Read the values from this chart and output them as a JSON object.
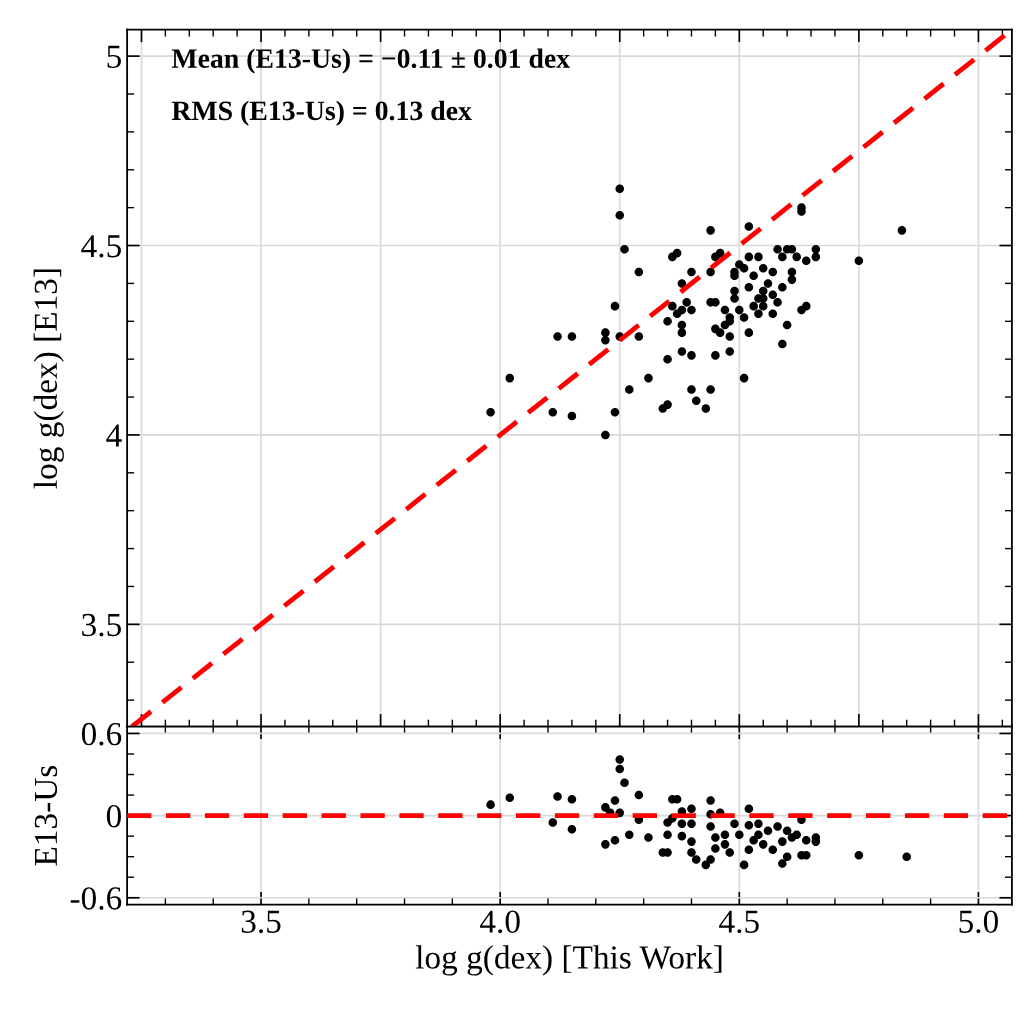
{
  "chart_data": [
    {
      "type": "scatter",
      "ylabel": "log g(dex) [E13]",
      "marker": "circle",
      "grid": true,
      "tick_labels": "y",
      "annotations": [
        "Mean (E13-Us) = −0.11 ± 0.01 dex",
        "RMS (E13-Us) = 0.13 dex"
      ],
      "xlim": [
        3.22,
        5.07
      ],
      "ylim": [
        3.23,
        5.07
      ],
      "yticks": [
        3.5,
        4,
        4.5,
        5
      ],
      "series": [
        {
          "color": "#000000",
          "x": [
            4.25,
            4.25,
            4.26,
            4.29,
            4.24,
            4.12,
            4.15,
            4.22,
            4.22,
            4.25,
            4.29,
            4.02,
            4.27,
            3.98,
            4.11,
            4.15,
            4.24,
            4.22,
            4.44,
            4.52,
            4.63,
            4.63,
            4.84,
            4.75,
            4.37,
            4.36,
            4.46,
            4.45,
            4.4,
            4.44,
            4.38,
            4.52,
            4.54,
            4.58,
            4.6,
            4.61,
            4.59,
            4.62,
            4.64,
            4.66,
            4.66,
            4.5,
            4.49,
            4.51,
            4.49,
            4.55,
            4.57,
            4.53,
            4.61,
            4.61,
            4.59,
            4.49,
            4.52,
            4.56,
            4.55,
            4.54,
            4.57,
            4.55,
            4.49,
            4.58,
            4.53,
            4.55,
            4.54,
            4.57,
            4.51,
            4.5,
            4.63,
            4.64,
            4.6,
            4.59,
            4.52,
            4.36,
            4.37,
            4.39,
            4.4,
            4.38,
            4.35,
            4.38,
            4.38,
            4.44,
            4.45,
            4.47,
            4.48,
            4.47,
            4.48,
            4.45,
            4.46,
            4.48,
            4.38,
            4.4,
            4.35,
            4.45,
            4.48,
            4.51,
            4.31,
            4.4,
            4.41,
            4.44,
            4.43,
            4.35,
            4.34
          ],
          "values": [
            4.65,
            4.58,
            4.49,
            4.43,
            4.34,
            4.26,
            4.26,
            4.27,
            4.25,
            4.26,
            4.26,
            4.15,
            4.12,
            4.06,
            4.06,
            4.05,
            4.06,
            4.0,
            4.54,
            4.55,
            4.6,
            4.59,
            4.54,
            4.46,
            4.48,
            4.47,
            4.48,
            4.47,
            4.43,
            4.43,
            4.4,
            4.47,
            4.47,
            4.49,
            4.49,
            4.49,
            4.47,
            4.47,
            4.46,
            4.49,
            4.47,
            4.45,
            4.43,
            4.44,
            4.42,
            4.44,
            4.43,
            4.42,
            4.43,
            4.41,
            4.39,
            4.38,
            4.39,
            4.4,
            4.38,
            4.36,
            4.37,
            4.36,
            4.36,
            4.35,
            4.34,
            4.34,
            4.32,
            4.32,
            4.31,
            4.33,
            4.33,
            4.34,
            4.29,
            4.24,
            4.27,
            4.34,
            4.32,
            4.35,
            4.33,
            4.33,
            4.3,
            4.29,
            4.27,
            4.35,
            4.35,
            4.33,
            4.31,
            4.29,
            4.3,
            4.28,
            4.27,
            4.26,
            4.22,
            4.21,
            4.2,
            4.21,
            4.22,
            4.15,
            4.15,
            4.12,
            4.09,
            4.12,
            4.07,
            4.08,
            4.07
          ]
        },
        {
          "type": "line",
          "color": "#ff0000",
          "line_style": "dashed",
          "marker": "none",
          "x": [
            3.23,
            5.07
          ],
          "values": [
            3.23,
            5.07
          ]
        }
      ]
    },
    {
      "type": "scatter",
      "xlabel": "log g(dex) [This Work]",
      "ylabel": "E13-Us",
      "marker": "circle",
      "grid": true,
      "xlim": [
        3.22,
        5.07
      ],
      "xticks": [
        3.5,
        {
          "value": 4,
          "label": "4.0"
        },
        4.5,
        {
          "value": 5,
          "label": "5.0"
        }
      ],
      "ylim": [
        -0.65,
        0.65
      ],
      "yticks": [
        0.6,
        0,
        {
          "value": -0.6,
          "label": "-0.6"
        }
      ],
      "ref_lines": [
        {
          "axis": "y",
          "value": 0,
          "color": "#ff0000",
          "line_style": "dashed"
        }
      ],
      "series": [
        {
          "color": "#000000",
          "x": [
            3.98,
            4.02,
            4.12,
            4.15,
            4.11,
            4.15,
            4.22,
            4.23,
            4.25,
            4.25,
            4.26,
            4.24,
            4.25,
            4.29,
            4.29,
            4.22,
            4.24,
            4.27,
            4.31,
            4.36,
            4.37,
            4.35,
            4.36,
            4.35,
            4.34,
            4.35,
            4.38,
            4.4,
            4.38,
            4.4,
            4.38,
            4.4,
            4.4,
            4.41,
            4.43,
            4.44,
            4.44,
            4.44,
            4.46,
            4.44,
            4.45,
            4.45,
            4.47,
            4.47,
            4.48,
            4.49,
            4.5,
            4.51,
            4.52,
            4.52,
            4.52,
            4.53,
            4.54,
            4.54,
            4.55,
            4.56,
            4.57,
            4.58,
            4.59,
            4.59,
            4.6,
            4.6,
            4.61,
            4.62,
            4.63,
            4.63,
            4.64,
            4.64,
            4.66,
            4.66,
            4.75,
            4.85
          ],
          "values": [
            0.08,
            0.13,
            0.14,
            0.12,
            -0.05,
            -0.1,
            0.06,
            0.02,
            0.41,
            0.34,
            0.24,
            0.11,
            0.02,
            0.15,
            -0.03,
            -0.21,
            -0.18,
            -0.14,
            -0.16,
            0.12,
            0.12,
            -0.05,
            -0.02,
            -0.14,
            -0.27,
            -0.27,
            0.03,
            0.05,
            -0.06,
            -0.06,
            -0.15,
            -0.19,
            -0.27,
            -0.32,
            -0.36,
            -0.32,
            0.11,
            0.01,
            0.02,
            -0.08,
            -0.16,
            -0.24,
            -0.14,
            -0.21,
            -0.27,
            -0.06,
            -0.14,
            -0.36,
            0.05,
            -0.07,
            -0.25,
            -0.18,
            -0.06,
            -0.14,
            -0.21,
            -0.11,
            -0.25,
            -0.08,
            -0.19,
            -0.35,
            -0.3,
            -0.11,
            -0.16,
            -0.14,
            -0.03,
            -0.29,
            -0.29,
            -0.18,
            -0.16,
            -0.19,
            -0.29,
            -0.3
          ]
        }
      ]
    }
  ]
}
